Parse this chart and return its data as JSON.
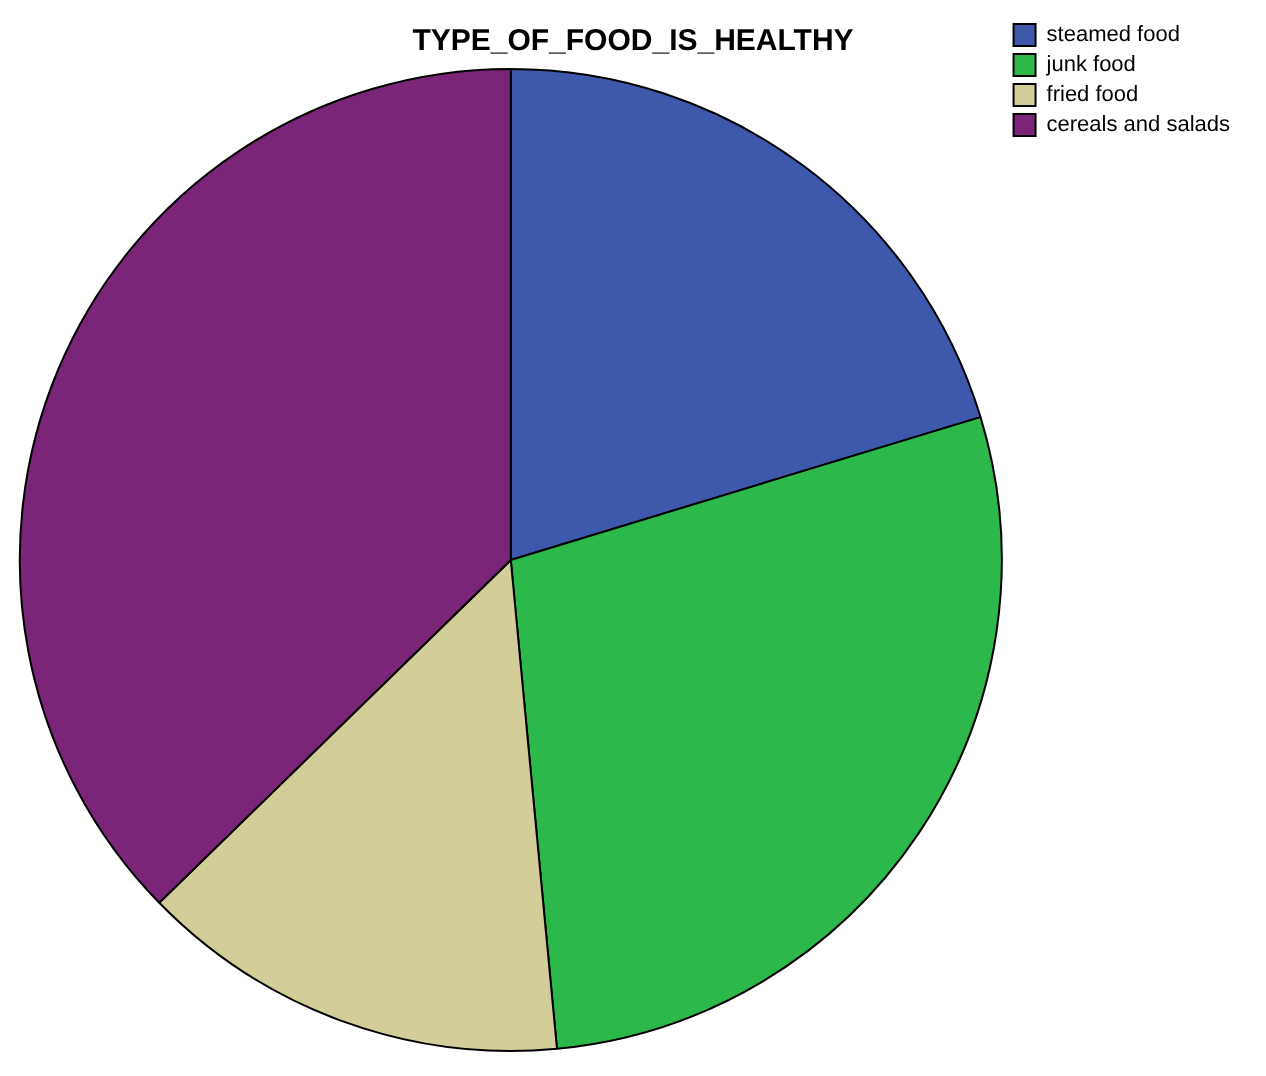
{
  "chart_data": {
    "type": "pie",
    "title": "TYPE_OF_FOOD_IS_HEALTHY",
    "categories": [
      "steamed food",
      "junk food",
      "fried food",
      "cereals and salads"
    ],
    "values": [
      20.3,
      28.2,
      14.2,
      37.3
    ],
    "colors": [
      "#3e58ac",
      "#2db84b",
      "#d3ce99",
      "#7b2579"
    ],
    "legend": "top right"
  }
}
